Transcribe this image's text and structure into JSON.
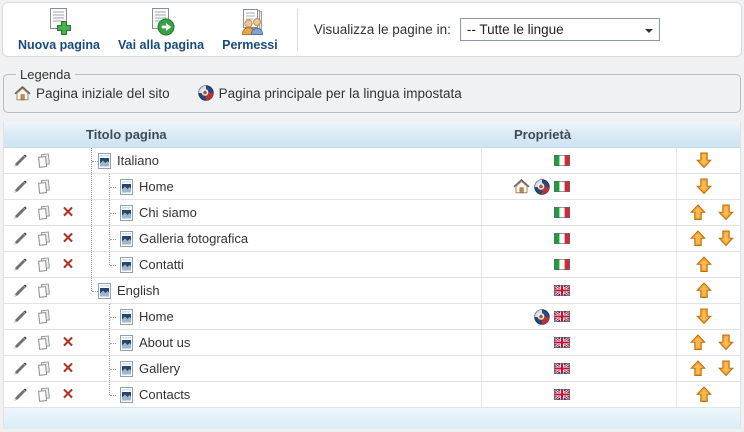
{
  "toolbar": {
    "buttons": [
      {
        "id": "new-page",
        "icon": "new-page-icon",
        "label": "Nuova pagina"
      },
      {
        "id": "goto-page",
        "icon": "goto-page-icon",
        "label": "Vai alla pagina"
      },
      {
        "id": "permissions",
        "icon": "permissions-icon",
        "label": "Permessi"
      }
    ],
    "filter": {
      "label": "Visualizza le pagine in:",
      "value": "-- Tutte le lingue"
    }
  },
  "legend": {
    "title": "Legenda",
    "items": [
      {
        "icon": "home-icon",
        "label": "Pagina iniziale del sito"
      },
      {
        "icon": "main-language-icon",
        "label": "Pagina principale per la lingua impostata"
      }
    ]
  },
  "table": {
    "headers": {
      "title": "Titolo pagina",
      "properties": "Proprietà"
    },
    "rows": [
      {
        "title": "Italiano",
        "indent": 1,
        "connector": "mid",
        "trunk": false,
        "can_delete": false,
        "is_site_home": false,
        "is_language_main": false,
        "flag": "it",
        "move_up": false,
        "move_down": true
      },
      {
        "title": "Home",
        "indent": 2,
        "connector": "mid",
        "trunk": true,
        "can_delete": false,
        "is_site_home": true,
        "is_language_main": true,
        "flag": "it",
        "move_up": false,
        "move_down": true
      },
      {
        "title": "Chi siamo",
        "indent": 2,
        "connector": "mid",
        "trunk": true,
        "can_delete": true,
        "is_site_home": false,
        "is_language_main": false,
        "flag": "it",
        "move_up": true,
        "move_down": true
      },
      {
        "title": "Galleria fotografica",
        "indent": 2,
        "connector": "mid",
        "trunk": true,
        "can_delete": true,
        "is_site_home": false,
        "is_language_main": false,
        "flag": "it",
        "move_up": true,
        "move_down": true
      },
      {
        "title": "Contatti",
        "indent": 2,
        "connector": "last",
        "trunk": true,
        "can_delete": true,
        "is_site_home": false,
        "is_language_main": false,
        "flag": "it",
        "move_up": true,
        "move_down": false
      },
      {
        "title": "English",
        "indent": 1,
        "connector": "last",
        "trunk": false,
        "can_delete": false,
        "is_site_home": false,
        "is_language_main": false,
        "flag": "gb",
        "move_up": true,
        "move_down": false
      },
      {
        "title": "Home",
        "indent": 2,
        "connector": "mid",
        "trunk": false,
        "can_delete": false,
        "is_site_home": false,
        "is_language_main": true,
        "flag": "gb",
        "move_up": false,
        "move_down": true
      },
      {
        "title": "About us",
        "indent": 2,
        "connector": "mid",
        "trunk": false,
        "can_delete": true,
        "is_site_home": false,
        "is_language_main": false,
        "flag": "gb",
        "move_up": true,
        "move_down": true
      },
      {
        "title": "Gallery",
        "indent": 2,
        "connector": "mid",
        "trunk": false,
        "can_delete": true,
        "is_site_home": false,
        "is_language_main": false,
        "flag": "gb",
        "move_up": true,
        "move_down": true
      },
      {
        "title": "Contacts",
        "indent": 2,
        "connector": "last",
        "trunk": false,
        "can_delete": true,
        "is_site_home": false,
        "is_language_main": false,
        "flag": "gb",
        "move_up": true,
        "move_down": false
      }
    ]
  },
  "colors": {
    "header_blue_top": "#eef6fb",
    "header_blue_bottom": "#cfe3f1",
    "footer_blue": "#dcedf8",
    "toolbar_label_navy": "#1a4a7c",
    "arrow_orange": "#f6a02a",
    "delete_red": "#b03224",
    "flag_it_green": "#1f9d3c",
    "flag_it_red": "#cf2b36",
    "flag_gb_blue": "#29356f"
  }
}
